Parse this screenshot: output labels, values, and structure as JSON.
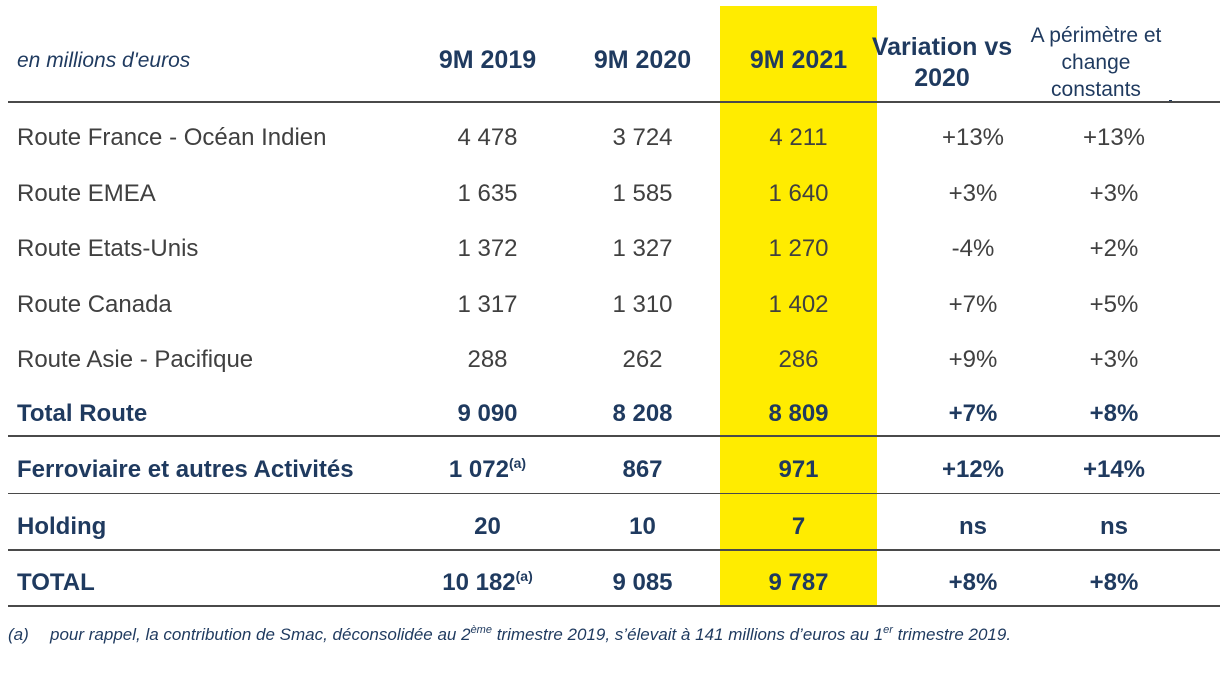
{
  "header": {
    "unit_label": "en millions d'euros",
    "col_2019": "9M 2019",
    "col_2020": "9M 2020",
    "col_2021": "9M 2021",
    "col_variation": "Variation vs 2020",
    "col_constant": "A périmètre et change constants"
  },
  "rows": [
    {
      "label": "Route France - Océan Indien",
      "v2019": "4 478",
      "v2019_note": "",
      "v2020": "3 724",
      "v2021": "4 211",
      "variation": "+13%",
      "constant": "+13%"
    },
    {
      "label": "Route EMEA",
      "v2019": "1 635",
      "v2019_note": "",
      "v2020": "1 585",
      "v2021": "1 640",
      "variation": "+3%",
      "constant": "+3%"
    },
    {
      "label": "Route Etats-Unis",
      "v2019": "1 372",
      "v2019_note": "",
      "v2020": "1 327",
      "v2021": "1 270",
      "variation": "-4%",
      "constant": "+2%"
    },
    {
      "label": "Route Canada",
      "v2019": "1 317",
      "v2019_note": "",
      "v2020": "1 310",
      "v2021": "1 402",
      "variation": "+7%",
      "constant": "+5%"
    },
    {
      "label": "Route Asie - Pacifique",
      "v2019": "288",
      "v2019_note": "",
      "v2020": "262",
      "v2021": "286",
      "variation": "+9%",
      "constant": "+3%"
    },
    {
      "label": "Total Route",
      "v2019": "9 090",
      "v2019_note": "",
      "v2020": "8 208",
      "v2021": "8 809",
      "variation": "+7%",
      "constant": "+8%"
    },
    {
      "label": "Ferroviaire et autres Activités",
      "v2019": "1 072",
      "v2019_note": "(a)",
      "v2020": "867",
      "v2021": "971",
      "variation": "+12%",
      "constant": "+14%"
    },
    {
      "label": "Holding",
      "v2019": "20",
      "v2019_note": "",
      "v2020": "10",
      "v2021": "7",
      "variation": "ns",
      "constant": "ns"
    },
    {
      "label": "TOTAL",
      "v2019": "10 182",
      "v2019_note": "(a)",
      "v2020": "9 085",
      "v2021": "9 787",
      "variation": "+8%",
      "constant": "+8%"
    }
  ],
  "footnote": {
    "mark": "(a)",
    "text_1": "pour rappel, la contribution de Smac, déconsolidée au 2",
    "sup_1": "ème",
    "text_2": " trimestre 2019, s’élevait à 141 millions d’euros au 1",
    "sup_2": "er",
    "text_3": " trimestre 2019."
  },
  "colors": {
    "highlight": "#ffec00",
    "header_text": "#1f3a5f",
    "body_text": "#404040"
  }
}
